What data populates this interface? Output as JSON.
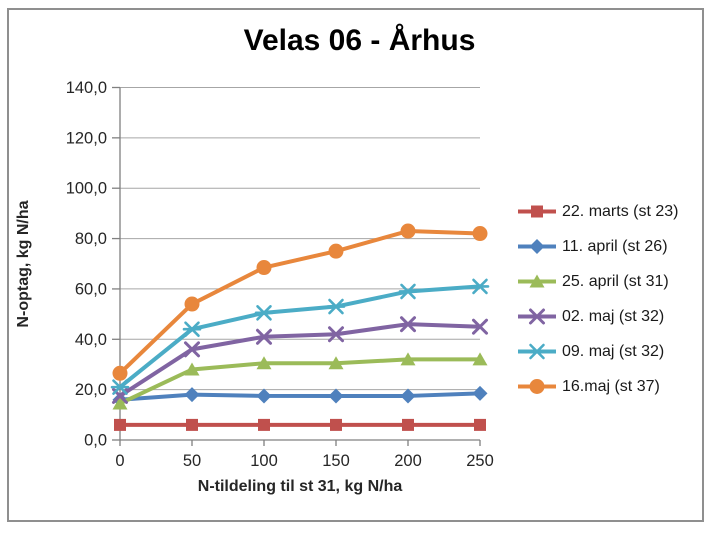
{
  "frame": {
    "border_color": "#8f8f8f",
    "background_color": "#ffffff",
    "axis_line_color": "#808080",
    "gridline_color": "#a6a6a6",
    "tick_label_color": "#262626"
  },
  "chart_data": {
    "type": "line",
    "title": "Velas 06 - Århus",
    "xlabel": "N-tildeling til st 31, kg N/ha",
    "ylabel": "N-optag, kg N/ha",
    "x": [
      0,
      50,
      100,
      150,
      200,
      250
    ],
    "x_tick_labels": [
      "0",
      "50",
      "100",
      "150",
      "200",
      "250"
    ],
    "y_ticks": [
      0,
      20,
      40,
      60,
      80,
      100,
      120,
      140
    ],
    "y_tick_labels": [
      "0,0",
      "20,0",
      "40,0",
      "60,0",
      "80,0",
      "100,0",
      "120,0",
      "140,0"
    ],
    "xlim": [
      0,
      250
    ],
    "ylim": [
      0,
      140
    ],
    "grid": "horizontal",
    "legend_position": "right",
    "series": [
      {
        "name": "22. marts (st 23)",
        "marker": "square",
        "color": "#C0504D",
        "values": [
          6,
          6,
          6,
          6,
          6,
          6
        ]
      },
      {
        "name": "11. april (st 26)",
        "marker": "diamond",
        "color": "#4F81BD",
        "values": [
          16,
          18,
          17.5,
          17.5,
          17.5,
          18.5
        ]
      },
      {
        "name": "25. april (st 31)",
        "marker": "triangle",
        "color": "#9BBB59",
        "values": [
          14.5,
          28,
          30.5,
          30.5,
          32,
          32
        ]
      },
      {
        "name": "02. maj (st 32)",
        "marker": "x",
        "color": "#8064A2",
        "values": [
          17.5,
          36,
          41,
          42,
          46,
          45
        ]
      },
      {
        "name": "09. maj (st 32)",
        "marker": "asterisk",
        "color": "#4BACC6",
        "values": [
          21,
          44,
          50.5,
          53,
          59,
          61
        ]
      },
      {
        "name": "16.maj (st 37)",
        "marker": "circle",
        "color": "#E8873C",
        "values": [
          26.5,
          54,
          68.5,
          75,
          83,
          82
        ]
      }
    ]
  }
}
